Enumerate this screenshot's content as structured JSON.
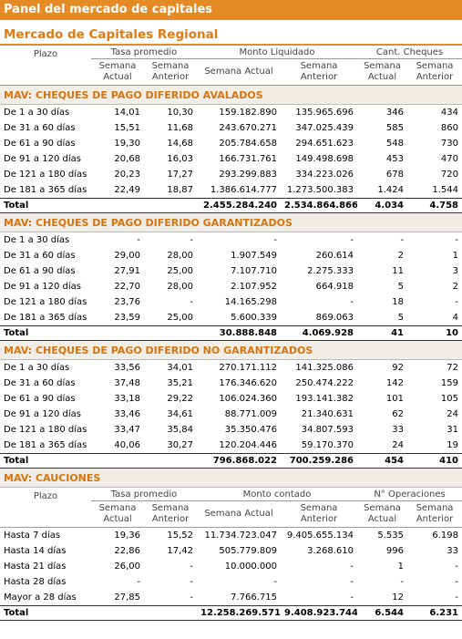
{
  "header": {
    "title": "Panel del mercado de capitales",
    "subtitle": "Mercado de Capitales Regional"
  },
  "table_header": {
    "row_label": "Plazo",
    "groups": [
      "Tasa promedio",
      "Monto Liquidado",
      "Cant. Cheques"
    ],
    "columns": [
      "Semana Actual",
      "Semana Anterior",
      "Semana Actual",
      "Semana Anterior",
      "Semana Actual",
      "Semana Anterior"
    ]
  },
  "sections": [
    {
      "title": "MAV: CHEQUES DE PAGO DIFERIDO AVALADOS",
      "rows": [
        [
          "De 1 a 30 días",
          "14,01",
          "10,30",
          "159.182.890",
          "135.965.696",
          "346",
          "434"
        ],
        [
          "De 31 a 60 días",
          "15,51",
          "11,68",
          "243.670.271",
          "347.025.439",
          "585",
          "860"
        ],
        [
          "De 61 a 90 días",
          "19,30",
          "14,68",
          "205.784.658",
          "294.651.623",
          "548",
          "730"
        ],
        [
          "De 91 a 120 días",
          "20,68",
          "16,03",
          "166.731.761",
          "149.498.698",
          "453",
          "470"
        ],
        [
          "De 121 a 180 días",
          "20,23",
          "17,27",
          "293.299.883",
          "334.223.026",
          "678",
          "720"
        ],
        [
          "De 181 a 365 días",
          "22,49",
          "18,87",
          "1.386.614.777",
          "1.273.500.383",
          "1.424",
          "1.544"
        ]
      ],
      "total": [
        "Total",
        null,
        null,
        "2.455.284.240",
        "2.534.864.866",
        "4.034",
        "4.758"
      ]
    },
    {
      "title": "MAV: CHEQUES DE PAGO DIFERIDO GARANTIZADOS",
      "rows": [
        [
          "De 1 a 30 días",
          "-",
          "-",
          "-",
          "-",
          "-",
          "-"
        ],
        [
          "De 31 a 60 días",
          "29,00",
          "28,00",
          "1.907.549",
          "260.614",
          "2",
          "1"
        ],
        [
          "De 61 a 90 días",
          "27,91",
          "25,00",
          "7.107.710",
          "2.275.333",
          "11",
          "3"
        ],
        [
          "De 91 a 120 días",
          "22,70",
          "28,00",
          "2.107.952",
          "664.918",
          "5",
          "2"
        ],
        [
          "De 121 a 180 días",
          "23,76",
          "-",
          "14.165.298",
          "-",
          "18",
          "-"
        ],
        [
          "De 181 a 365 días",
          "23,59",
          "25,00",
          "5.600.339",
          "869.063",
          "5",
          "4"
        ]
      ],
      "total": [
        "Total",
        null,
        null,
        "30.888.848",
        "4.069.928",
        "41",
        "10"
      ]
    },
    {
      "title": "MAV: CHEQUES DE PAGO DIFERIDO NO GARANTIZADOS",
      "rows": [
        [
          "De 1 a 30 días",
          "33,56",
          "34,01",
          "270.171.112",
          "141.325.086",
          "92",
          "72"
        ],
        [
          "De 31 a 60 días",
          "37,48",
          "35,21",
          "176.346.620",
          "250.474.222",
          "142",
          "159"
        ],
        [
          "De 61 a 90 días",
          "33,18",
          "29,22",
          "106.024.360",
          "193.141.382",
          "101",
          "105"
        ],
        [
          "De 91 a 120 días",
          "33,46",
          "34,61",
          "88.771.009",
          "21.340.631",
          "62",
          "24"
        ],
        [
          "De 121 a 180 días",
          "33,47",
          "35,84",
          "35.350.476",
          "34.807.593",
          "33",
          "31"
        ],
        [
          "De 181 a 365 días",
          "40,06",
          "30,27",
          "120.204.446",
          "59.170.370",
          "24",
          "19"
        ]
      ],
      "total": [
        "Total",
        null,
        null,
        "796.868.022",
        "700.259.286",
        "454",
        "410"
      ]
    }
  ],
  "cauciones": {
    "title": "MAV: CAUCIONES",
    "header": {
      "row_label": "Plazo",
      "groups": [
        "Tasa promedio",
        "Monto contado",
        "N° Operaciones"
      ],
      "columns": [
        "Semana Actual",
        "Semana Anterior",
        "Semana Actual",
        "Semana Anterior",
        "Semana Actual",
        "Semana Anterior"
      ]
    },
    "rows": [
      [
        "Hasta 7 días",
        "19,36",
        "15,52",
        "11.734.723.047",
        "9.405.655.134",
        "5.535",
        "6.198"
      ],
      [
        "Hasta 14 días",
        "22,86",
        "17,42",
        "505.779.809",
        "3.268.610",
        "996",
        "33"
      ],
      [
        "Hasta 21 días",
        "26,00",
        "-",
        "10.000.000",
        "-",
        "1",
        "-"
      ],
      [
        "Hasta 28 días",
        "-",
        "-",
        "-",
        "-",
        "-",
        "-"
      ],
      [
        "Mayor a 28 días",
        "27,85",
        "-",
        "7.766.715",
        "-",
        "12",
        "-"
      ]
    ],
    "total": [
      "Total",
      null,
      null,
      "12.258.269.571",
      "9.408.923.744",
      "6.544",
      "6.231"
    ]
  }
}
